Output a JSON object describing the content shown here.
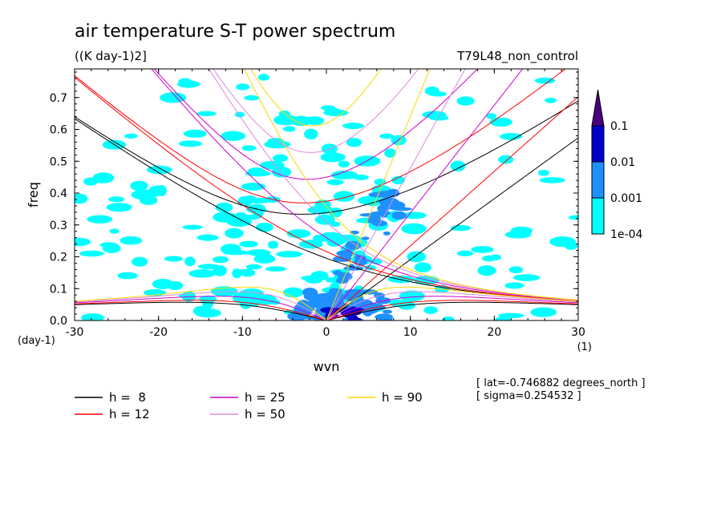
{
  "chart_data": {
    "type": "heatmap",
    "title": "air temperature S-T power spectrum",
    "units": "((K day-1)2]",
    "run_label": "T79L48_non_control",
    "xlabel": "wvn",
    "ylabel": "freq",
    "x_unit": "(1)",
    "y_unit": "(day-1)",
    "xlim": [
      -30,
      30
    ],
    "ylim": [
      0,
      0.79
    ],
    "xticks": [
      "-30",
      "-20",
      "-10",
      "0",
      "10",
      "20",
      "30"
    ],
    "yticks": [
      "0.0",
      "0.1",
      "0.2",
      "0.3",
      "0.4",
      "0.5",
      "0.6",
      "0.7"
    ],
    "info": [
      "[ lat=-0.746882 degrees_north ]",
      "[ sigma=0.254532 ]"
    ],
    "colorbar": {
      "levels": [
        "1e-04",
        "0.001",
        "0.01",
        "0.1"
      ],
      "colors": [
        "#00ffff",
        "#1e90ff",
        "#0000cd",
        "#4b0082"
      ]
    },
    "contours": [
      {
        "level": "1e-04",
        "color": "#00ffff",
        "note": "scattered patches over most of domain; dense band 0.05-0.45 near wvn -20..10"
      },
      {
        "level": "0.001",
        "color": "#1e90ff",
        "note": "concentrated near origin and along eastward wvn 0..10, freq 0..0.4"
      },
      {
        "level": "0.01",
        "color": "#0000cd",
        "note": "near wvn 0..5, freq 0..0.05"
      }
    ],
    "dispersion_curves": [
      {
        "label": "h =  8",
        "color": "#000000"
      },
      {
        "label": "h = 12",
        "color": "#ff0000"
      },
      {
        "label": "h = 25",
        "color": "#cc00cc"
      },
      {
        "label": "h = 50",
        "color": "#dd88dd"
      },
      {
        "label": "h = 90",
        "color": "#ffd700"
      }
    ]
  }
}
